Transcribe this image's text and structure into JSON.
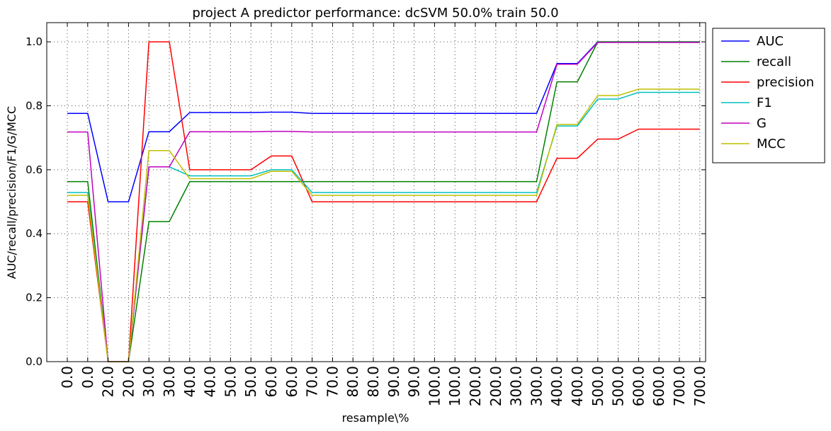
{
  "chart_data": {
    "type": "line",
    "title": "project A predictor performance: dcSVM 50.0% train 50.0",
    "xlabel": "resample\\%",
    "ylabel": "AUC/recall/precision/F1/G/MCC",
    "ylim": [
      0,
      1.06
    ],
    "yticks": [
      "0.0",
      "0.2",
      "0.4",
      "0.6",
      "0.8",
      "1.0"
    ],
    "grid": true,
    "legend_position": "outside-top-right",
    "categories": [
      "0.0",
      "0.0",
      "20.0",
      "20.0",
      "30.0",
      "30.0",
      "40.0",
      "40.0",
      "50.0",
      "50.0",
      "60.0",
      "60.0",
      "70.0",
      "70.0",
      "80.0",
      "80.0",
      "90.0",
      "90.0",
      "100.0",
      "100.0",
      "200.0",
      "200.0",
      "300.0",
      "300.0",
      "400.0",
      "400.0",
      "500.0",
      "500.0",
      "600.0",
      "600.0",
      "700.0",
      "700.0"
    ],
    "series": [
      {
        "name": "AUC",
        "color": "#0000ff",
        "values": [
          0.776,
          0.776,
          0.5,
          0.5,
          0.719,
          0.719,
          0.779,
          0.779,
          0.779,
          0.779,
          0.78,
          0.78,
          0.776,
          0.776,
          0.776,
          0.776,
          0.776,
          0.776,
          0.776,
          0.776,
          0.776,
          0.776,
          0.776,
          0.776,
          0.932,
          0.932,
          1.0,
          1.0,
          1.0,
          1.0,
          1.0,
          1.0
        ]
      },
      {
        "name": "recall",
        "color": "#008000",
        "values": [
          0.563,
          0.563,
          0.0,
          0.0,
          0.438,
          0.438,
          0.563,
          0.563,
          0.563,
          0.563,
          0.563,
          0.563,
          0.563,
          0.563,
          0.563,
          0.563,
          0.563,
          0.563,
          0.563,
          0.563,
          0.563,
          0.563,
          0.563,
          0.563,
          0.875,
          0.875,
          1.0,
          1.0,
          1.0,
          1.0,
          1.0,
          1.0
        ]
      },
      {
        "name": "precision",
        "color": "#ff0000",
        "values": [
          0.5,
          0.5,
          0.0,
          0.0,
          1.0,
          1.0,
          0.6,
          0.6,
          0.6,
          0.6,
          0.643,
          0.643,
          0.5,
          0.5,
          0.5,
          0.5,
          0.5,
          0.5,
          0.5,
          0.5,
          0.5,
          0.5,
          0.5,
          0.5,
          0.636,
          0.636,
          0.696,
          0.696,
          0.727,
          0.727,
          0.727,
          0.727
        ]
      },
      {
        "name": "F1",
        "color": "#00bfbf",
        "values": [
          0.529,
          0.529,
          0.0,
          0.0,
          0.609,
          0.609,
          0.581,
          0.581,
          0.581,
          0.581,
          0.6,
          0.6,
          0.529,
          0.529,
          0.529,
          0.529,
          0.529,
          0.529,
          0.529,
          0.529,
          0.529,
          0.529,
          0.529,
          0.529,
          0.737,
          0.737,
          0.821,
          0.821,
          0.842,
          0.842,
          0.842,
          0.842
        ]
      },
      {
        "name": "G",
        "color": "#bf00bf",
        "values": [
          0.718,
          0.718,
          0.0,
          0.0,
          0.609,
          0.609,
          0.719,
          0.719,
          0.719,
          0.719,
          0.72,
          0.72,
          0.718,
          0.718,
          0.718,
          0.718,
          0.718,
          0.718,
          0.718,
          0.718,
          0.718,
          0.718,
          0.718,
          0.718,
          0.93,
          0.93,
          0.998,
          0.998,
          0.998,
          0.998,
          0.998,
          0.998
        ]
      },
      {
        "name": "MCC",
        "color": "#bfbf00",
        "values": [
          0.52,
          0.52,
          0.0,
          0.0,
          0.66,
          0.66,
          0.572,
          0.572,
          0.572,
          0.572,
          0.595,
          0.595,
          0.52,
          0.52,
          0.52,
          0.52,
          0.52,
          0.52,
          0.52,
          0.52,
          0.52,
          0.52,
          0.52,
          0.52,
          0.742,
          0.742,
          0.832,
          0.832,
          0.852,
          0.852,
          0.852,
          0.852
        ]
      }
    ]
  }
}
